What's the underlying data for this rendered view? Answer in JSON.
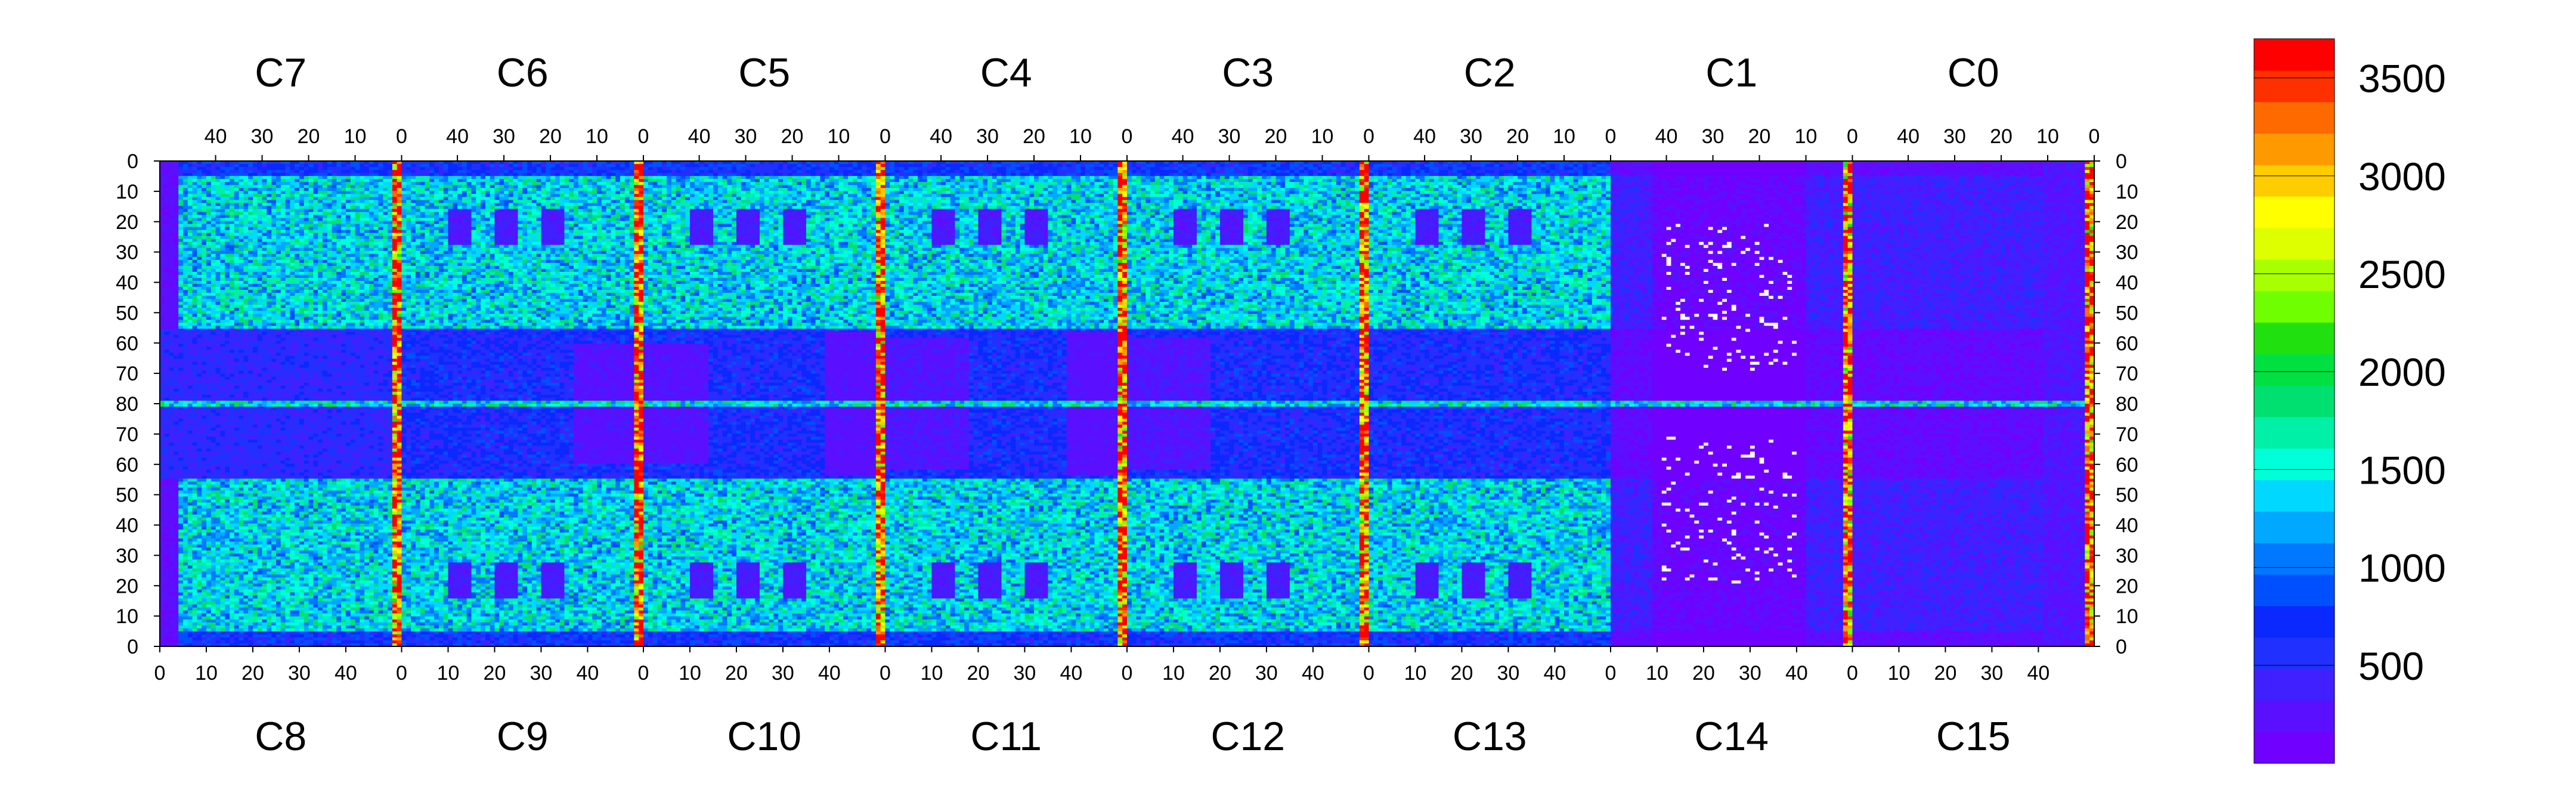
{
  "chart_data": {
    "type": "heatmap",
    "title": "",
    "xlabel": "",
    "ylabel": "",
    "top_chips": [
      "C7",
      "C6",
      "C5",
      "C4",
      "C3",
      "C2",
      "C1",
      "C0"
    ],
    "bottom_chips": [
      "C8",
      "C9",
      "C10",
      "C11",
      "C12",
      "C13",
      "C14",
      "C15"
    ],
    "top_tick_labels": [
      "40",
      "30",
      "20",
      "10",
      "0"
    ],
    "bottom_tick_labels": [
      "0",
      "10",
      "20",
      "30",
      "40"
    ],
    "y_tick_labels": [
      "0",
      "10",
      "20",
      "30",
      "40",
      "50",
      "60",
      "70",
      "80",
      "70",
      "60",
      "50",
      "40",
      "30",
      "20",
      "10",
      "0"
    ],
    "colorbar": {
      "range": [
        0,
        3700
      ],
      "tick_labels": [
        "500",
        "1000",
        "1500",
        "2000",
        "2500",
        "3000",
        "3500"
      ],
      "tick_values": [
        500,
        1000,
        1500,
        2000,
        2500,
        3000,
        3500
      ],
      "colors": [
        "#7000ff",
        "#5a10ff",
        "#4020ff",
        "#2030ff",
        "#0a28ff",
        "#0050ff",
        "#0078ff",
        "#00a8ff",
        "#00d8ff",
        "#00ffd8",
        "#00f0a8",
        "#00e070",
        "#00e040",
        "#20e010",
        "#70ff00",
        "#a8ff00",
        "#ddff00",
        "#ffff00",
        "#ffcc00",
        "#ff9900",
        "#ff6a00",
        "#ff3000",
        "#ff0000"
      ]
    },
    "pixel_grid": {
      "columns_per_chip": 52,
      "rows_per_half": 81
    },
    "features": {
      "high_occupancy_columns": [
        "C7|C6 boundary",
        "C6|C5 boundary",
        "C5|C4 boundary",
        "C4|C3 boundary",
        "C3|C2 boundary",
        "C1|C0 boundary",
        "C0 right edge"
      ],
      "low_occupancy_region": "C13/C14 (top C2/C1) inner columns with scattered white pixels",
      "horizontal_band_row": 80,
      "typical_occupancy_mid_chips": 1700,
      "typical_occupancy_edges": 300
    }
  }
}
